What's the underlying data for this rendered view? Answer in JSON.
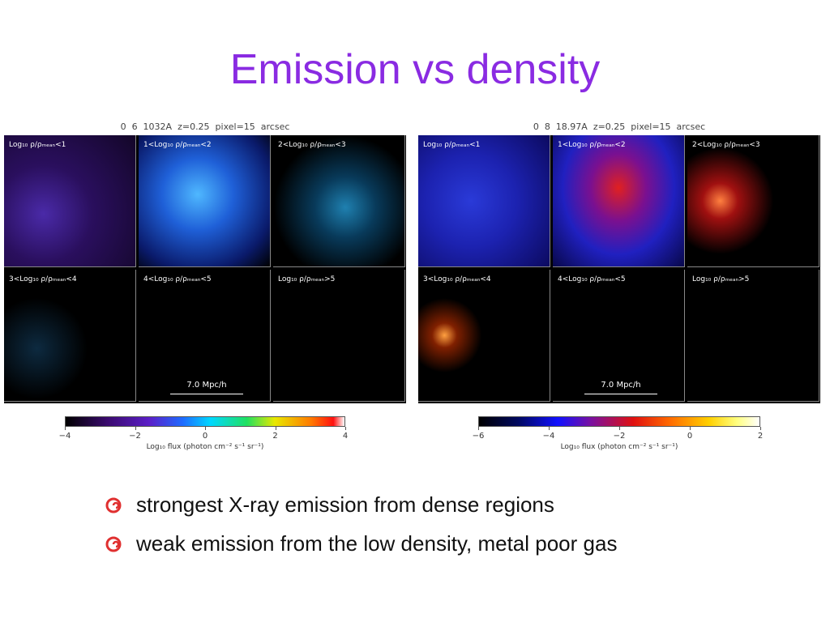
{
  "title": "Emission vs density",
  "figures": [
    {
      "header": "0  6  1032A  z=0.25  pixel=15  arcsec",
      "panels": [
        "Log₁₀ ρ/ρₘₑₐₙ<1",
        "1<Log₁₀ ρ/ρₘₑₐₙ<2",
        "2<Log₁₀ ρ/ρₘₑₐₙ<3",
        "3<Log₁₀ ρ/ρₘₑₐₙ<4",
        "4<Log₁₀ ρ/ρₘₑₐₙ<5",
        "Log₁₀ ρ/ρₘₑₐₙ>5"
      ],
      "scale_bar": "7.0 Mpc/h",
      "colorbar": {
        "ticks": [
          "−4",
          "−2",
          "0",
          "2",
          "4"
        ],
        "label": "Log₁₀ flux (photon cm⁻² s⁻¹ sr⁻¹)"
      }
    },
    {
      "header": "0  8  18.97A  z=0.25  pixel=15  arcsec",
      "panels": [
        "Log₁₀ ρ/ρₘₑₐₙ<1",
        "1<Log₁₀ ρ/ρₘₑₐₙ<2",
        "2<Log₁₀ ρ/ρₘₑₐₙ<3",
        "3<Log₁₀ ρ/ρₘₑₐₙ<4",
        "4<Log₁₀ ρ/ρₘₑₐₙ<5",
        "Log₁₀ ρ/ρₘₑₐₙ>5"
      ],
      "scale_bar": "7.0 Mpc/h",
      "colorbar": {
        "ticks": [
          "−6",
          "−4",
          "−2",
          "0",
          "2"
        ],
        "label": "Log₁₀ flux (photon cm⁻² s⁻¹ sr⁻¹)"
      }
    }
  ],
  "bullets": [
    "strongest X-ray emission from dense regions",
    "weak emission from the low density, metal poor gas"
  ]
}
